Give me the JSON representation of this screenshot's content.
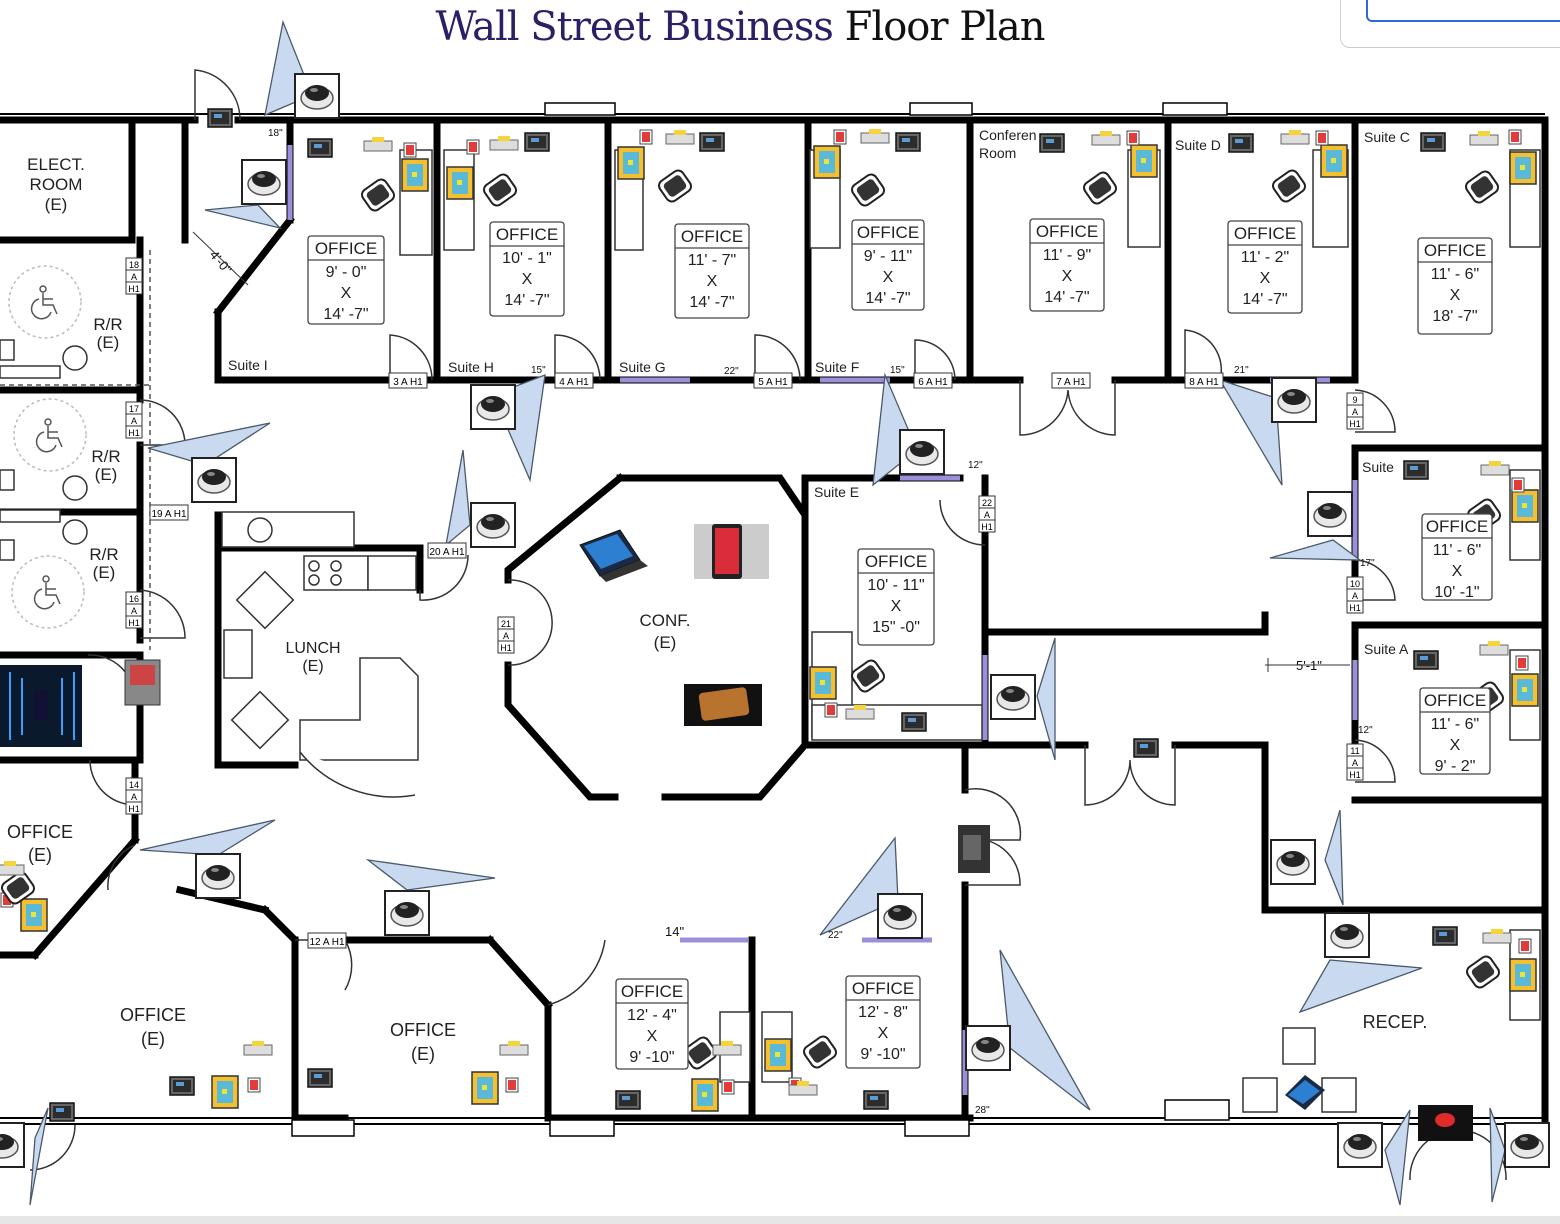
{
  "header": {
    "title_primary": "Wall Street Business",
    "title_secondary": "Floor Plan"
  },
  "rooms": {
    "elect_room": [
      "ELECT.",
      "ROOM",
      "(E)"
    ],
    "rr1": [
      "R/R",
      "(E)"
    ],
    "rr2": [
      "R/R",
      "(E)"
    ],
    "rr3": [
      "R/R",
      "(E)"
    ],
    "lunch": [
      "LUNCH",
      "(E)"
    ],
    "conf": [
      "CONF.",
      "(E)"
    ],
    "office_left": [
      "OFFICE",
      "(E)"
    ],
    "office_bl": [
      "OFFICE",
      "(E)"
    ],
    "office_bc": [
      "OFFICE",
      "(E)"
    ],
    "recep": "RECEP."
  },
  "suites": {
    "i": "Suite I",
    "h": "Suite H",
    "g": "Suite G",
    "f": "Suite F",
    "conference": [
      "Conferen",
      "Room"
    ],
    "d": "Suite D",
    "c": "Suite C",
    "e": "Suite E",
    "b": "Suite",
    "a": "Suite A"
  },
  "office_boxes": [
    {
      "label": "OFFICE",
      "w": "9' - 0\"",
      "x": "X",
      "l": "14' -7\""
    },
    {
      "label": "OFFICE",
      "w": "10' - 1\"",
      "x": "X",
      "l": "14' -7\""
    },
    {
      "label": "OFFICE",
      "w": "11' - 7\"",
      "x": "X",
      "l": "14' -7\""
    },
    {
      "label": "OFFICE",
      "w": "9' - 11\"",
      "x": "X",
      "l": "14' -7\""
    },
    {
      "label": "OFFICE",
      "w": "11' - 9\"",
      "x": "X",
      "l": "14' -7\""
    },
    {
      "label": "OFFICE",
      "w": "11' - 2\"",
      "x": "X",
      "l": "14' -7\""
    },
    {
      "label": "OFFICE",
      "w": "11' - 6\"",
      "x": "X",
      "l": "18' -7\""
    },
    {
      "label": "OFFICE",
      "w": "11' - 6\"",
      "x": "X",
      "l": "10' -1\""
    },
    {
      "label": "OFFICE",
      "w": "11' - 6\"",
      "x": "X",
      "l": "9' - 2\""
    },
    {
      "label": "OFFICE",
      "w": "10' - 11\"",
      "x": "X",
      "l": "15\" -0\""
    },
    {
      "label": "OFFICE",
      "w": "12' - 4\"",
      "x": "X",
      "l": "9' -10\""
    },
    {
      "label": "OFFICE",
      "w": "12' - 8\"",
      "x": "X",
      "l": "9' -10\""
    }
  ],
  "door_tags": [
    {
      "n": "18",
      "a": "A",
      "h": "H1"
    },
    {
      "n": "17",
      "a": "A",
      "h": "H1"
    },
    {
      "n": "16",
      "a": "A",
      "h": "H1"
    },
    {
      "n": "14",
      "a": "A",
      "h": "H1"
    },
    {
      "n": "10",
      "a": "A",
      "h": "H1"
    },
    {
      "n": "11",
      "a": "A",
      "h": "H1"
    },
    {
      "n": "9",
      "a": "A",
      "h": "H1"
    },
    {
      "n": "22",
      "a": "A",
      "h": "H1"
    },
    {
      "n": "21",
      "a": "A",
      "h": "H1"
    }
  ],
  "door_tags_h": [
    "3 A H1",
    "4 A H1",
    "5 A H1",
    "6 A H1",
    "7 A H1",
    "8 A H1",
    "19 A H1",
    "20 A H1",
    "12 A H1"
  ],
  "dims": {
    "d18": "18\"",
    "d15a": "15\"",
    "d22a": "22\"",
    "d15b": "15\"",
    "d21": "21\"",
    "d12a": "12\"",
    "d17": "17\"",
    "d12b": "12\"",
    "d14": "14\"",
    "d22b": "22\"",
    "d28": "28\"",
    "d40": "4'-0\"",
    "d51": "5'-1\""
  },
  "colors": {
    "wall": "#000000",
    "cone": "#c9daf0",
    "cone_stroke": "#4a5a6a",
    "window": "#9a8fd8",
    "title_primary": "#2b1f66"
  },
  "icons": {
    "camera": "dome-camera-icon",
    "laptop": "laptop-icon",
    "tablet": "tablet-icon",
    "phone": "phone-icon",
    "access": "accessible-icon"
  }
}
